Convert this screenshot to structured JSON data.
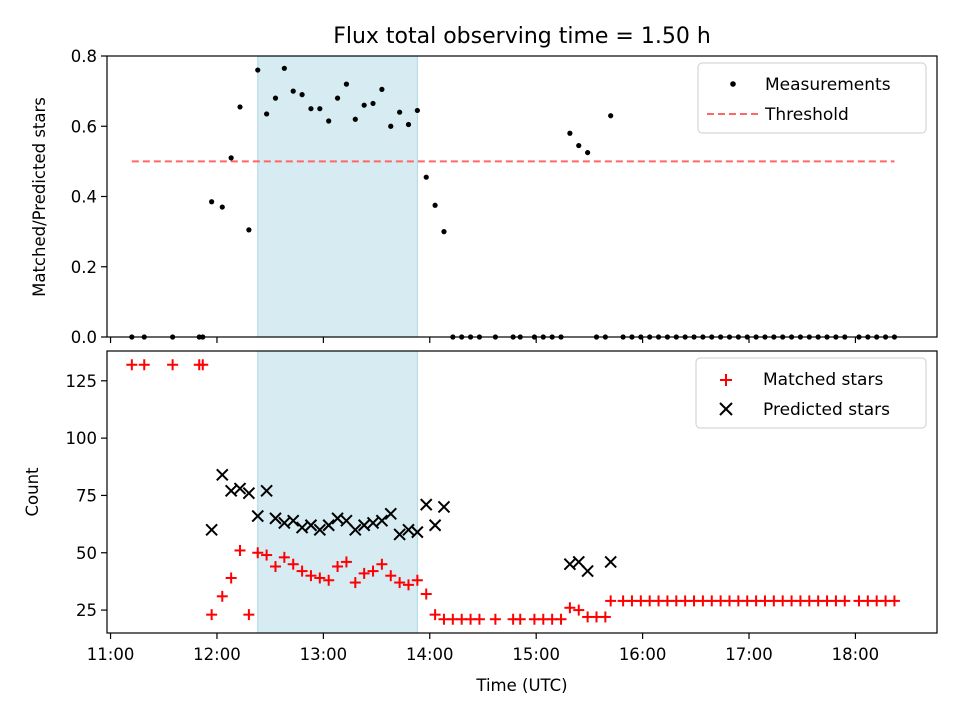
{
  "title": "Flux total observing time = 1.50 h",
  "colors": {
    "shade": "#add8e6",
    "threshold": "#ff6666",
    "matched": "#ff0000",
    "predicted": "#000000",
    "measurements": "#000000"
  },
  "shade_span": [
    "12:23",
    "13:53"
  ],
  "chart_data": [
    {
      "type": "scatter",
      "ylabel": "Matched/Predicted stars",
      "xlim": [
        "10:58",
        "18:46"
      ],
      "ylim": [
        0,
        0.8
      ],
      "yticks": [
        0.0,
        0.2,
        0.4,
        0.6,
        0.8
      ],
      "ytick_labels": [
        "0.0",
        "0.2",
        "0.4",
        "0.6",
        "0.8"
      ],
      "legend_position": "top-right",
      "legend": [
        "Measurements",
        "Threshold"
      ],
      "threshold": {
        "value": 0.5,
        "x": [
          "11:12",
          "18:22"
        ]
      },
      "measurements": [
        [
          "11:12",
          0
        ],
        [
          "11:19",
          0
        ],
        [
          "11:35",
          0
        ],
        [
          "11:50",
          0
        ],
        [
          "11:52",
          0
        ],
        [
          "11:57",
          0.385
        ],
        [
          "12:03",
          0.37
        ],
        [
          "12:08",
          0.51
        ],
        [
          "12:13",
          0.655
        ],
        [
          "12:18",
          0.305
        ],
        [
          "12:23",
          0.76
        ],
        [
          "12:28",
          0.635
        ],
        [
          "12:33",
          0.68
        ],
        [
          "12:38",
          0.765
        ],
        [
          "12:43",
          0.7
        ],
        [
          "12:48",
          0.69
        ],
        [
          "12:53",
          0.65
        ],
        [
          "12:58",
          0.65
        ],
        [
          "13:03",
          0.615
        ],
        [
          "13:08",
          0.68
        ],
        [
          "13:13",
          0.72
        ],
        [
          "13:18",
          0.62
        ],
        [
          "13:23",
          0.66
        ],
        [
          "13:28",
          0.665
        ],
        [
          "13:33",
          0.705
        ],
        [
          "13:38",
          0.6
        ],
        [
          "13:43",
          0.64
        ],
        [
          "13:48",
          0.605
        ],
        [
          "13:53",
          0.645
        ],
        [
          "13:58",
          0.455
        ],
        [
          "14:03",
          0.375
        ],
        [
          "14:08",
          0.3
        ],
        [
          "14:13",
          0
        ],
        [
          "14:18",
          0
        ],
        [
          "14:23",
          0
        ],
        [
          "14:28",
          0
        ],
        [
          "14:37",
          0
        ],
        [
          "14:47",
          0
        ],
        [
          "14:51",
          0
        ],
        [
          "14:59",
          0
        ],
        [
          "15:04",
          0
        ],
        [
          "15:09",
          0
        ],
        [
          "15:14",
          0
        ],
        [
          "15:19",
          0.58
        ],
        [
          "15:24",
          0.545
        ],
        [
          "15:29",
          0.525
        ],
        [
          "15:34",
          0
        ],
        [
          "15:39",
          0
        ],
        [
          "15:42",
          0.63
        ],
        [
          "15:49",
          0
        ],
        [
          "15:54",
          0
        ],
        [
          "15:59",
          0
        ],
        [
          "16:04",
          0
        ],
        [
          "16:09",
          0
        ],
        [
          "16:14",
          0
        ],
        [
          "16:19",
          0
        ],
        [
          "16:24",
          0
        ],
        [
          "16:29",
          0
        ],
        [
          "16:34",
          0
        ],
        [
          "16:39",
          0
        ],
        [
          "16:44",
          0
        ],
        [
          "16:49",
          0
        ],
        [
          "16:54",
          0
        ],
        [
          "16:59",
          0
        ],
        [
          "17:04",
          0
        ],
        [
          "17:09",
          0
        ],
        [
          "17:14",
          0
        ],
        [
          "17:19",
          0
        ],
        [
          "17:24",
          0
        ],
        [
          "17:29",
          0
        ],
        [
          "17:34",
          0
        ],
        [
          "17:39",
          0
        ],
        [
          "17:44",
          0
        ],
        [
          "17:49",
          0
        ],
        [
          "17:54",
          0
        ],
        [
          "18:02",
          0
        ],
        [
          "18:07",
          0
        ],
        [
          "18:12",
          0
        ],
        [
          "18:17",
          0
        ],
        [
          "18:22",
          0
        ]
      ]
    },
    {
      "type": "scatter",
      "xlabel": "Time (UTC)",
      "ylabel": "Count",
      "xlim": [
        "10:58",
        "18:46"
      ],
      "ylim": [
        15,
        138
      ],
      "yticks": [
        25,
        50,
        75,
        100,
        125
      ],
      "ytick_labels": [
        "25",
        "50",
        "75",
        "100",
        "125"
      ],
      "xticks": [
        "11:00",
        "12:00",
        "13:00",
        "14:00",
        "15:00",
        "16:00",
        "17:00",
        "18:00"
      ],
      "xtick_labels": [
        "11:00",
        "12:00",
        "13:00",
        "14:00",
        "15:00",
        "16:00",
        "17:00",
        "18:00"
      ],
      "legend_position": "top-right",
      "legend": [
        "Matched stars",
        "Predicted stars"
      ],
      "matched": [
        [
          "11:12",
          132
        ],
        [
          "11:19",
          132
        ],
        [
          "11:35",
          132
        ],
        [
          "11:50",
          132
        ],
        [
          "11:52",
          132
        ],
        [
          "11:57",
          23
        ],
        [
          "12:03",
          31
        ],
        [
          "12:08",
          39
        ],
        [
          "12:13",
          51
        ],
        [
          "12:18",
          23
        ],
        [
          "12:23",
          50
        ],
        [
          "12:28",
          49
        ],
        [
          "12:33",
          44
        ],
        [
          "12:38",
          48
        ],
        [
          "12:43",
          45
        ],
        [
          "12:48",
          42
        ],
        [
          "12:53",
          40
        ],
        [
          "12:58",
          39
        ],
        [
          "13:03",
          38
        ],
        [
          "13:08",
          44
        ],
        [
          "13:13",
          46
        ],
        [
          "13:18",
          37
        ],
        [
          "13:23",
          41
        ],
        [
          "13:28",
          42
        ],
        [
          "13:33",
          45
        ],
        [
          "13:38",
          40
        ],
        [
          "13:43",
          37
        ],
        [
          "13:48",
          36
        ],
        [
          "13:53",
          38
        ],
        [
          "13:58",
          32
        ],
        [
          "14:03",
          23
        ],
        [
          "14:08",
          21
        ],
        [
          "14:13",
          21
        ],
        [
          "14:18",
          21
        ],
        [
          "14:23",
          21
        ],
        [
          "14:28",
          21
        ],
        [
          "14:37",
          21
        ],
        [
          "14:47",
          21
        ],
        [
          "14:51",
          21
        ],
        [
          "14:59",
          21
        ],
        [
          "15:04",
          21
        ],
        [
          "15:09",
          21
        ],
        [
          "15:14",
          21
        ],
        [
          "15:19",
          26
        ],
        [
          "15:24",
          25
        ],
        [
          "15:29",
          22
        ],
        [
          "15:34",
          22
        ],
        [
          "15:39",
          22
        ],
        [
          "15:42",
          29
        ],
        [
          "15:49",
          29
        ],
        [
          "15:54",
          29
        ],
        [
          "15:59",
          29
        ],
        [
          "16:04",
          29
        ],
        [
          "16:09",
          29
        ],
        [
          "16:14",
          29
        ],
        [
          "16:19",
          29
        ],
        [
          "16:24",
          29
        ],
        [
          "16:29",
          29
        ],
        [
          "16:34",
          29
        ],
        [
          "16:39",
          29
        ],
        [
          "16:44",
          29
        ],
        [
          "16:49",
          29
        ],
        [
          "16:54",
          29
        ],
        [
          "16:59",
          29
        ],
        [
          "17:04",
          29
        ],
        [
          "17:09",
          29
        ],
        [
          "17:14",
          29
        ],
        [
          "17:19",
          29
        ],
        [
          "17:24",
          29
        ],
        [
          "17:29",
          29
        ],
        [
          "17:34",
          29
        ],
        [
          "17:39",
          29
        ],
        [
          "17:44",
          29
        ],
        [
          "17:49",
          29
        ],
        [
          "17:54",
          29
        ],
        [
          "18:02",
          29
        ],
        [
          "18:07",
          29
        ],
        [
          "18:12",
          29
        ],
        [
          "18:17",
          29
        ],
        [
          "18:22",
          29
        ]
      ],
      "predicted": [
        [
          "11:57",
          60
        ],
        [
          "12:03",
          84
        ],
        [
          "12:08",
          77
        ],
        [
          "12:13",
          78
        ],
        [
          "12:18",
          76
        ],
        [
          "12:23",
          66
        ],
        [
          "12:28",
          77
        ],
        [
          "12:33",
          65
        ],
        [
          "12:38",
          63
        ],
        [
          "12:43",
          64
        ],
        [
          "12:48",
          61
        ],
        [
          "12:53",
          62
        ],
        [
          "12:58",
          60
        ],
        [
          "13:03",
          62
        ],
        [
          "13:08",
          65
        ],
        [
          "13:13",
          64
        ],
        [
          "13:18",
          60
        ],
        [
          "13:23",
          62
        ],
        [
          "13:28",
          63
        ],
        [
          "13:33",
          64
        ],
        [
          "13:38",
          67
        ],
        [
          "13:43",
          58
        ],
        [
          "13:48",
          60
        ],
        [
          "13:53",
          59
        ],
        [
          "13:58",
          71
        ],
        [
          "14:03",
          62
        ],
        [
          "14:08",
          70
        ],
        [
          "15:19",
          45
        ],
        [
          "15:24",
          46
        ],
        [
          "15:29",
          42
        ],
        [
          "15:42",
          46
        ]
      ]
    }
  ]
}
